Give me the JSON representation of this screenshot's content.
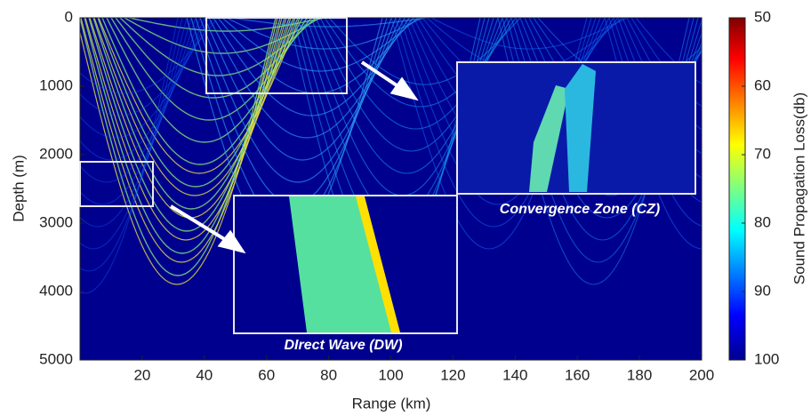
{
  "chart_data": {
    "type": "heatmap",
    "xlabel": "Range (km)",
    "ylabel": "Depth (m)",
    "xlim": [
      0,
      200
    ],
    "xticks": [
      20,
      40,
      60,
      80,
      100,
      120,
      140,
      160,
      180,
      200
    ],
    "ylim": [
      0,
      5000
    ],
    "y_inverted": true,
    "yticks": [
      0,
      1000,
      2000,
      3000,
      4000,
      5000
    ],
    "colormap": "jet",
    "clim": [
      50,
      100
    ],
    "colorbar_inverted": true,
    "cticks": [
      50,
      60,
      70,
      80,
      90,
      100
    ],
    "colorbar_label": "Sound Propagation Loss(db)",
    "annotations": [
      "Convergence Zone (CZ)",
      "DIrect Wave (DW)"
    ]
  }
}
